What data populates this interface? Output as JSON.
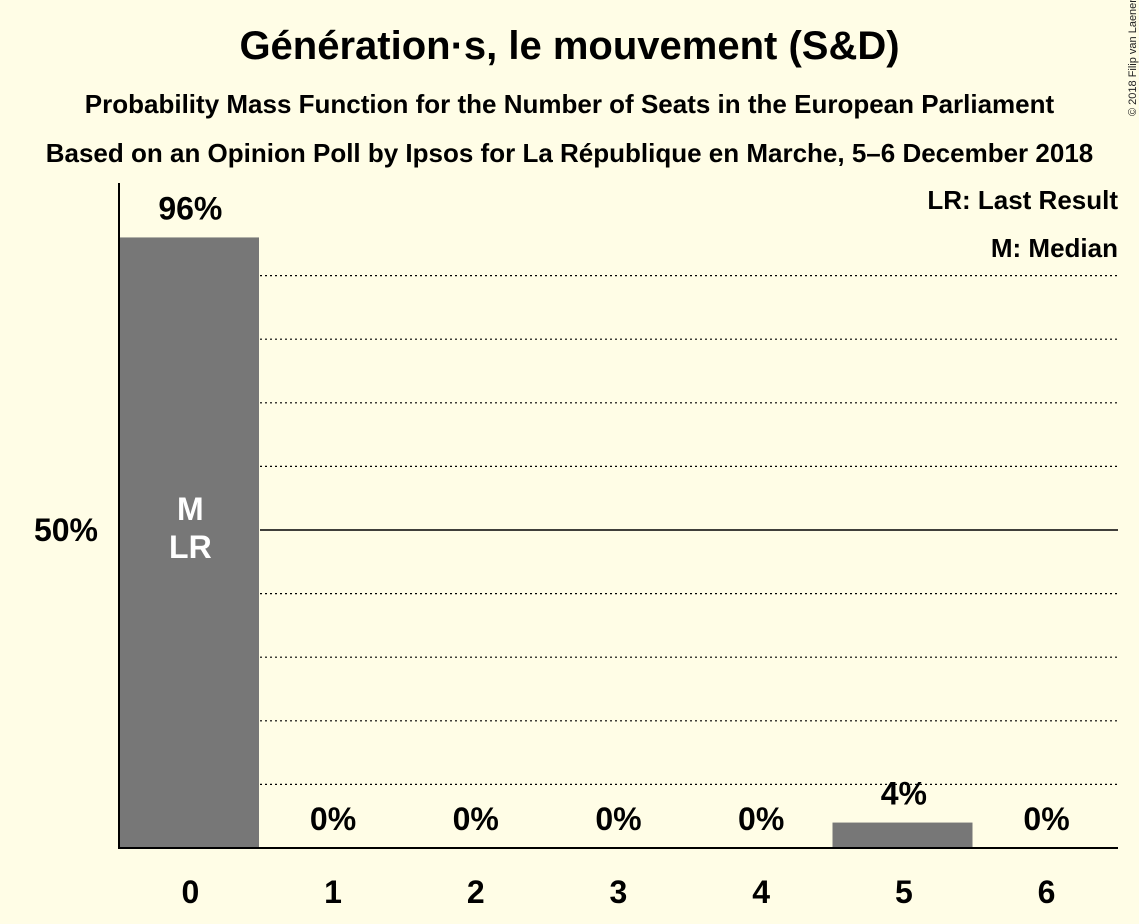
{
  "title": "Génération·s, le mouvement (S&D)",
  "subtitle1": "Probability Mass Function for the Number of Seats in the European Parliament",
  "subtitle2": "Based on an Opinion Poll by Ipsos for La République en Marche, 5–6 December 2018",
  "copyright": "© 2018 Filip van Laenen",
  "legend": {
    "last_result": "LR: Last Result",
    "median": "M: Median"
  },
  "colors": {
    "background": "#fffde6",
    "bar": "#777777"
  },
  "chart_data": {
    "type": "bar",
    "categories": [
      "0",
      "1",
      "2",
      "3",
      "4",
      "5",
      "6"
    ],
    "values": [
      96,
      0,
      0,
      0,
      0,
      4,
      0
    ],
    "value_labels": [
      "96%",
      "0%",
      "0%",
      "0%",
      "0%",
      "4%",
      "0%"
    ],
    "ylim": [
      0,
      100
    ],
    "yticks": [
      {
        "value": 50,
        "label": "50%"
      }
    ],
    "gridlines": [
      10,
      20,
      30,
      40,
      60,
      70,
      80,
      90
    ],
    "major_line": 50,
    "bar_markers": [
      {
        "category": "0",
        "lines": [
          "M",
          "LR"
        ]
      }
    ],
    "legend_position": "top-right"
  }
}
